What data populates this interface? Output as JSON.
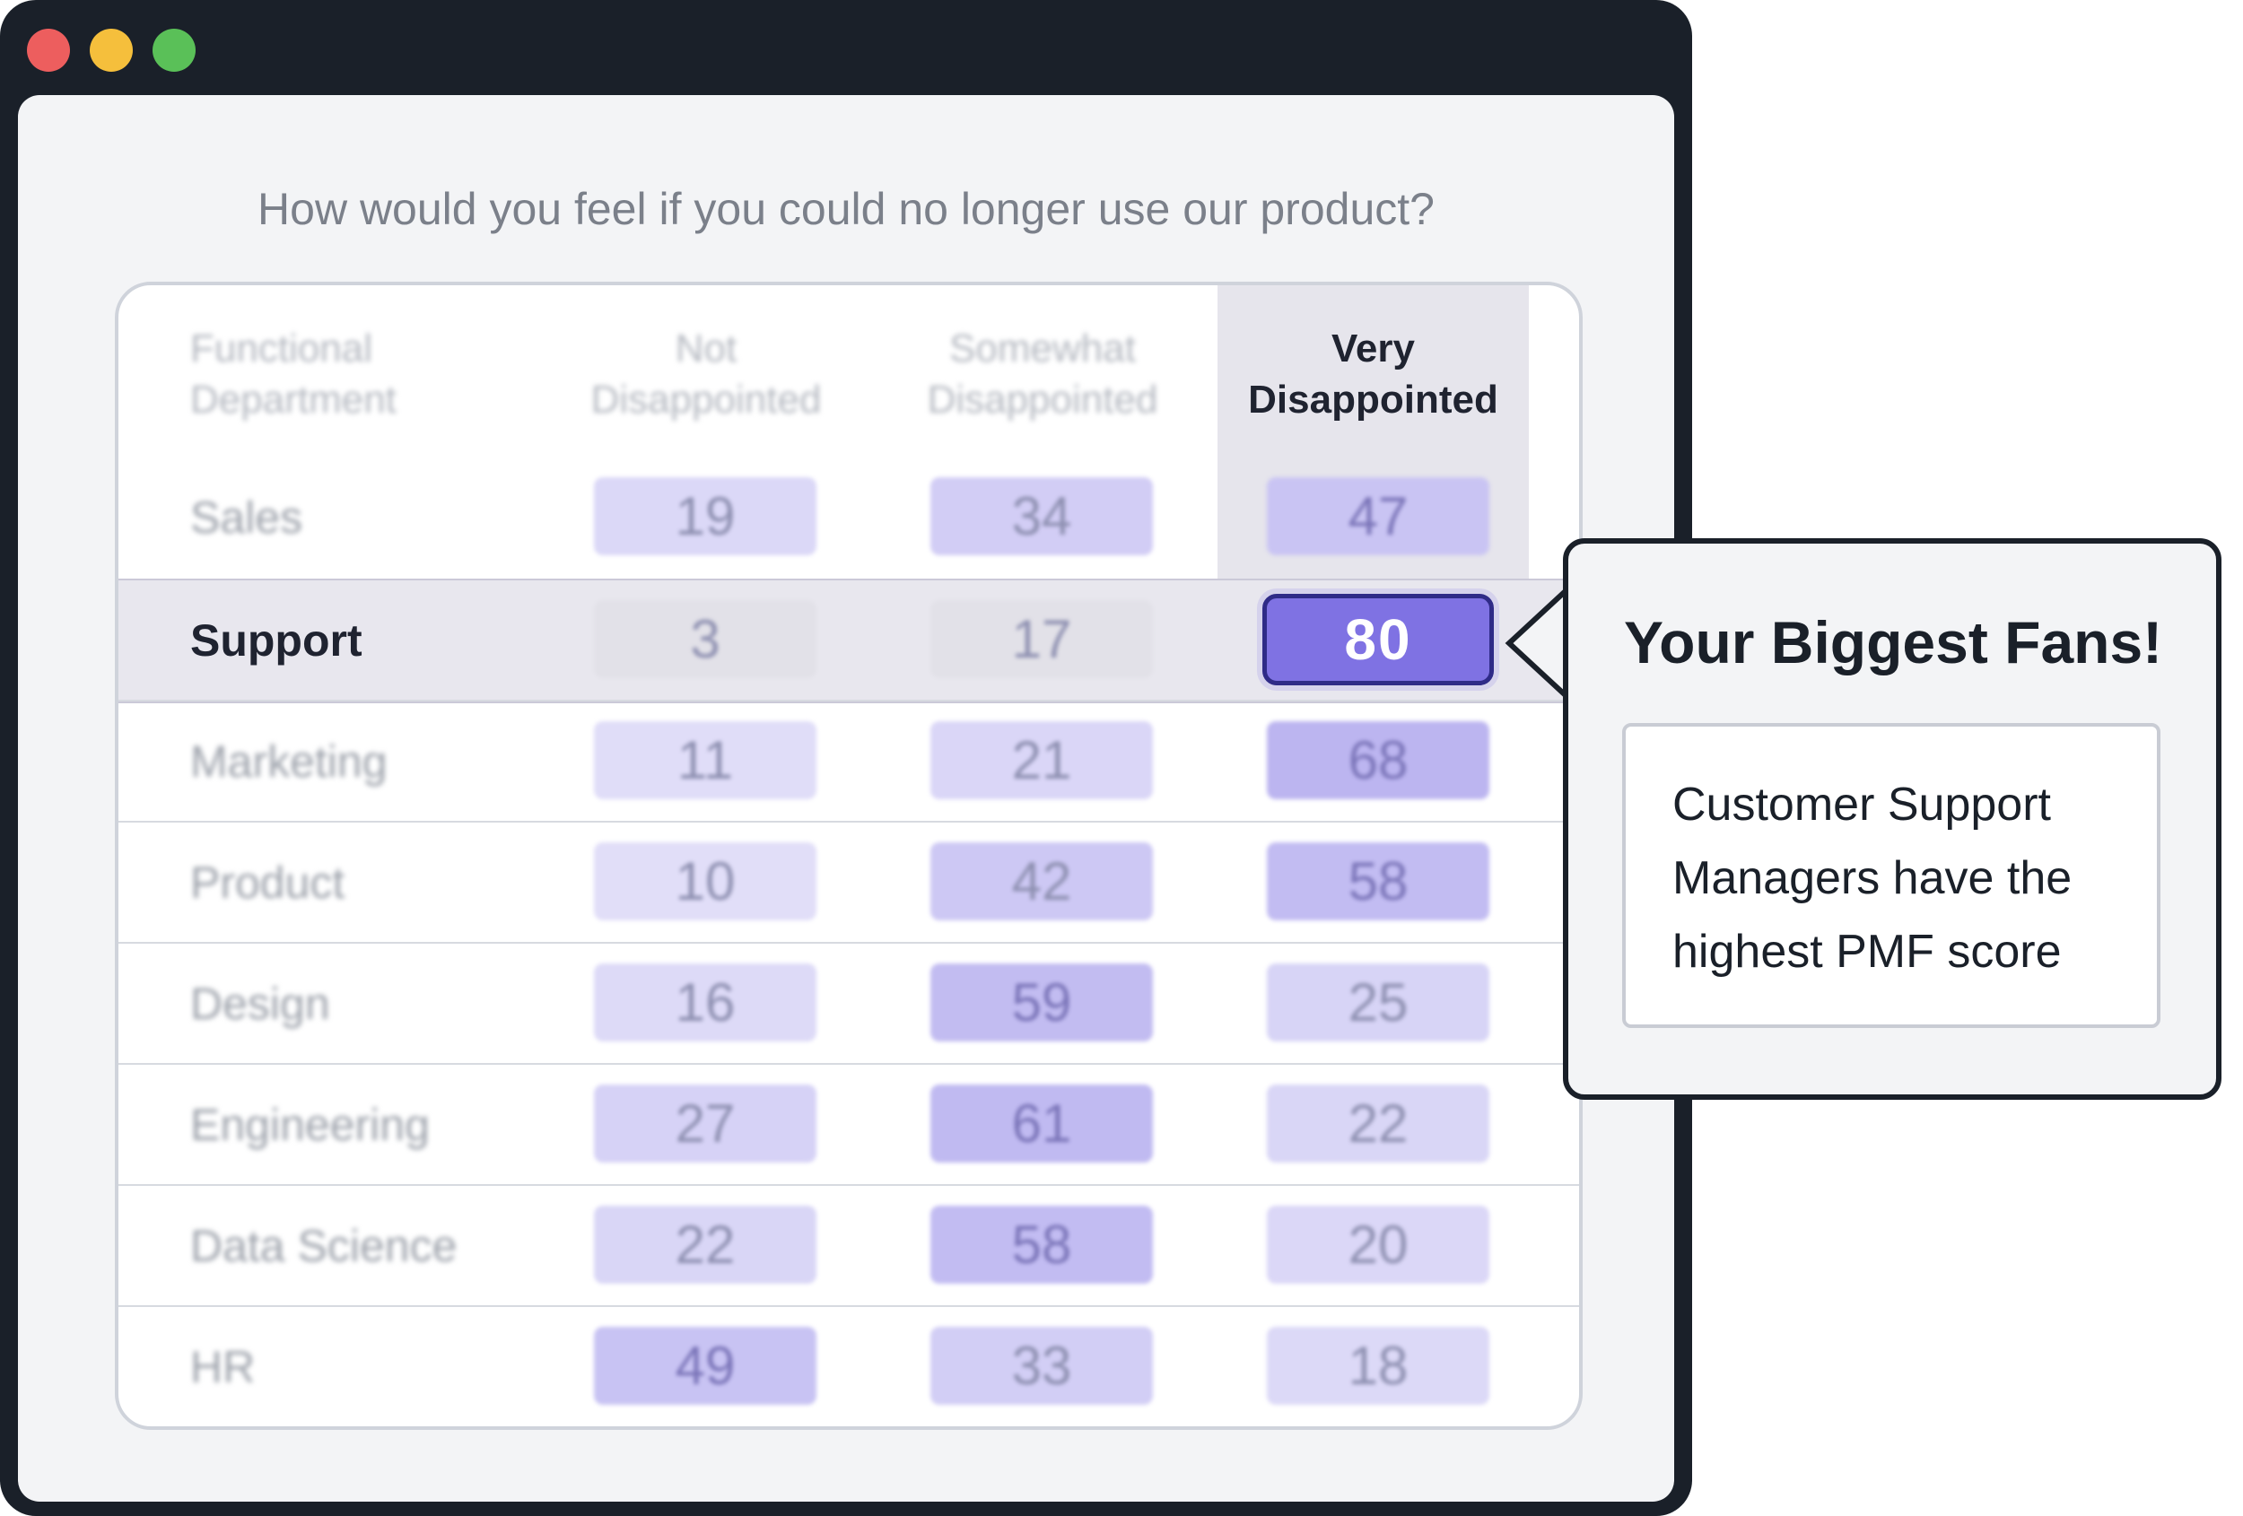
{
  "window": {
    "dots": [
      {
        "name": "close",
        "color": "#ed5e5e"
      },
      {
        "name": "minimize",
        "color": "#f5bf3c"
      },
      {
        "name": "maximize",
        "color": "#5ac058"
      }
    ]
  },
  "survey": {
    "question": "How would you feel if you could no longer use our product?"
  },
  "chart_data": {
    "type": "table",
    "columns": [
      {
        "lines": [
          "Functional",
          "Department"
        ]
      },
      {
        "lines": [
          "Not",
          "Disappointed"
        ]
      },
      {
        "lines": [
          "Somewhat",
          "Disappointed"
        ]
      },
      {
        "lines": [
          "Very",
          "Disappointed"
        ]
      }
    ],
    "rows": [
      {
        "department": "Sales",
        "values": [
          19,
          34,
          47
        ]
      },
      {
        "department": "Support",
        "values": [
          3,
          17,
          80
        ]
      },
      {
        "department": "Marketing",
        "values": [
          11,
          21,
          68
        ]
      },
      {
        "department": "Product",
        "values": [
          10,
          42,
          58
        ]
      },
      {
        "department": "Design",
        "values": [
          16,
          59,
          25
        ]
      },
      {
        "department": "Engineering",
        "values": [
          27,
          61,
          22
        ]
      },
      {
        "department": "Data Science",
        "values": [
          22,
          58,
          20
        ]
      },
      {
        "department": "HR",
        "values": [
          49,
          33,
          18
        ]
      }
    ],
    "highlight": {
      "row": "Support",
      "column": "Very Disappointed",
      "value": 80
    },
    "color_scale": {
      "low": "#f3f2fc",
      "high": "#7f72e3"
    }
  },
  "callout": {
    "title": "Your Biggest Fans!",
    "lines": [
      "Customer Support",
      "Managers have the",
      "highest PMF score"
    ]
  }
}
